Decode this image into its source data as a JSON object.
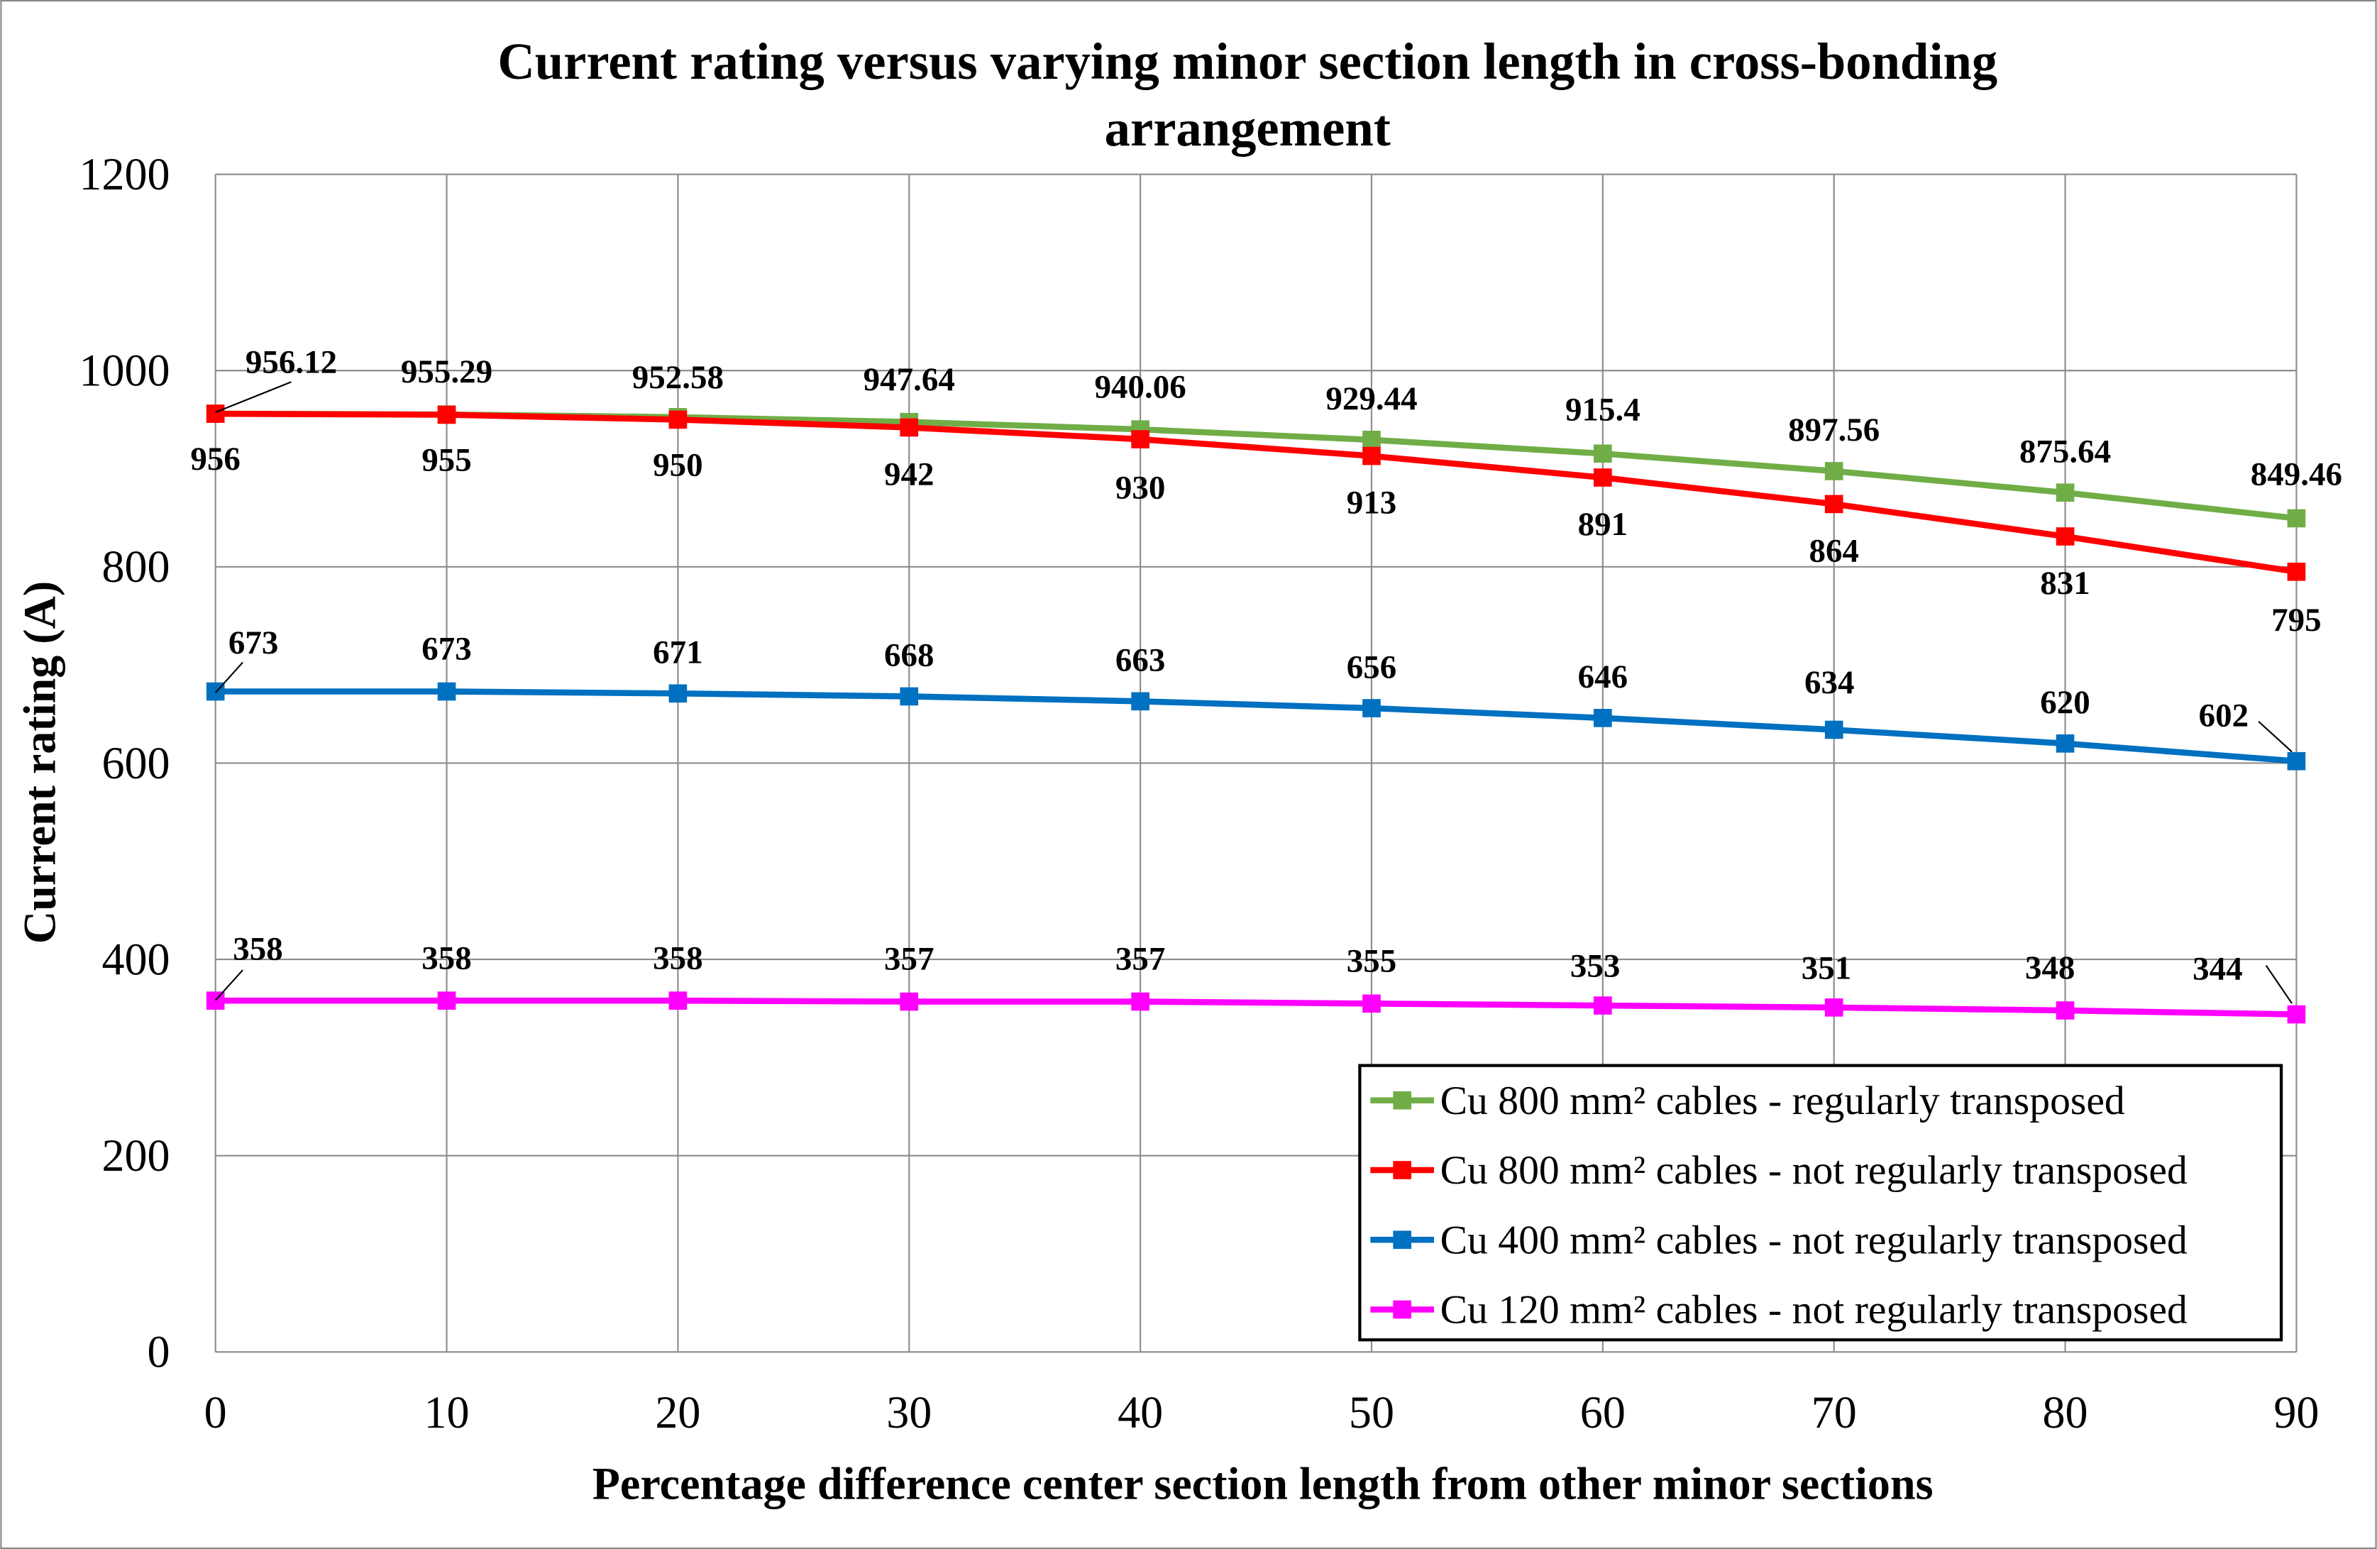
{
  "chart_data": {
    "type": "line",
    "title": "Current rating versus varying minor section length in cross-bonding arrangement",
    "title_lines": [
      "Current rating versus varying minor section length in cross-bonding",
      "arrangement"
    ],
    "xlabel": "Percentage difference center section length from other minor sections",
    "ylabel": "Current rating (A)",
    "x": [
      0,
      10,
      20,
      30,
      40,
      50,
      60,
      70,
      80,
      90
    ],
    "xlim": [
      0,
      90
    ],
    "ylim": [
      0,
      1200
    ],
    "x_ticks": [
      "0",
      "10",
      "20",
      "30",
      "40",
      "50",
      "60",
      "70",
      "80",
      "90"
    ],
    "y_ticks": [
      "0",
      "200",
      "400",
      "600",
      "800",
      "1000",
      "1200"
    ],
    "grid": true,
    "legend_position": "bottom-right",
    "series": [
      {
        "name": "Cu 800 mm² cables - regularly transposed",
        "color": "#70ad47",
        "values": [
          956.12,
          955.29,
          952.58,
          947.64,
          940.06,
          929.44,
          915.4,
          897.56,
          875.64,
          849.46
        ],
        "labels": [
          "956.12",
          "955.29",
          "952.58",
          "947.64",
          "940.06",
          "929.44",
          "915.4",
          "897.56",
          "875.64",
          "849.46"
        ]
      },
      {
        "name": "Cu 800 mm² cables - not regularly transposed",
        "color": "#ff0000",
        "values": [
          956,
          955,
          950,
          942,
          930,
          913,
          891,
          864,
          831,
          795
        ],
        "labels": [
          "956",
          "955",
          "950",
          "942",
          "930",
          "913",
          "891",
          "864",
          "831",
          "795"
        ]
      },
      {
        "name": "Cu 400 mm² cables - not regularly transposed",
        "color": "#0070c0",
        "values": [
          673,
          673,
          671,
          668,
          663,
          656,
          646,
          634,
          620,
          602
        ],
        "labels": [
          "673",
          "673",
          "671",
          "668",
          "663",
          "656",
          "646",
          "634",
          "620",
          "602"
        ]
      },
      {
        "name": "Cu 120 mm² cables - not regularly transposed",
        "color": "#ff00ff",
        "values": [
          358,
          358,
          358,
          357,
          357,
          355,
          353,
          351,
          348,
          344
        ],
        "labels": [
          "358",
          "358",
          "358",
          "357",
          "357",
          "355",
          "353",
          "351",
          "348",
          "344"
        ]
      }
    ]
  }
}
